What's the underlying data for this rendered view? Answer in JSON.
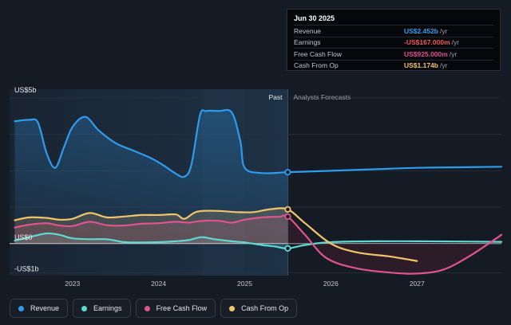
{
  "chart_data": {
    "type": "line",
    "y_axis": {
      "top_label": "US$5b",
      "zero_label": "US$0",
      "bottom_label": "-US$1b",
      "range": [
        -1.1,
        5.3
      ]
    },
    "x_axis": {
      "ticks": [
        "2023",
        "2024",
        "2025",
        "2026",
        "2027"
      ],
      "tick_values": [
        2023,
        2024,
        2025,
        2026,
        2027
      ],
      "range": [
        2022.27,
        2027.98
      ]
    },
    "past_boundary": 2025.5,
    "region_labels": {
      "past": "Past",
      "forecast": "Analysts Forecasts"
    },
    "series": [
      {
        "name": "Revenue",
        "color": "#2f9bec",
        "points": [
          [
            2022.33,
            4.2
          ],
          [
            2022.5,
            4.25
          ],
          [
            2022.6,
            4.15
          ],
          [
            2022.7,
            3.1
          ],
          [
            2022.8,
            2.6
          ],
          [
            2022.9,
            3.3
          ],
          [
            2023.0,
            4.0
          ],
          [
            2023.15,
            4.35
          ],
          [
            2023.3,
            3.9
          ],
          [
            2023.5,
            3.45
          ],
          [
            2023.7,
            3.2
          ],
          [
            2023.9,
            2.95
          ],
          [
            2024.05,
            2.7
          ],
          [
            2024.2,
            2.4
          ],
          [
            2024.3,
            2.3
          ],
          [
            2024.38,
            2.7
          ],
          [
            2024.48,
            4.4
          ],
          [
            2024.55,
            4.55
          ],
          [
            2024.7,
            4.55
          ],
          [
            2024.85,
            4.5
          ],
          [
            2024.95,
            3.5
          ],
          [
            2025.0,
            2.6
          ],
          [
            2025.2,
            2.42
          ],
          [
            2025.5,
            2.45
          ],
          [
            2026.0,
            2.5
          ],
          [
            2026.5,
            2.55
          ],
          [
            2027.0,
            2.6
          ],
          [
            2027.5,
            2.62
          ],
          [
            2027.98,
            2.64
          ]
        ]
      },
      {
        "name": "Earnings",
        "color": "#5fd8d2",
        "points": [
          [
            2022.33,
            0.1
          ],
          [
            2022.5,
            0.22
          ],
          [
            2022.7,
            0.35
          ],
          [
            2022.85,
            0.3
          ],
          [
            2023.0,
            0.18
          ],
          [
            2023.2,
            0.15
          ],
          [
            2023.4,
            0.15
          ],
          [
            2023.6,
            0.05
          ],
          [
            2023.8,
            0.04
          ],
          [
            2024.0,
            0.05
          ],
          [
            2024.2,
            0.08
          ],
          [
            2024.35,
            0.12
          ],
          [
            2024.5,
            0.22
          ],
          [
            2024.65,
            0.15
          ],
          [
            2024.85,
            0.08
          ],
          [
            2025.0,
            0.04
          ],
          [
            2025.2,
            -0.05
          ],
          [
            2025.35,
            -0.1
          ],
          [
            2025.5,
            -0.167
          ],
          [
            2025.7,
            -0.05
          ],
          [
            2026.0,
            0.05
          ],
          [
            2026.5,
            0.08
          ],
          [
            2027.0,
            0.08
          ],
          [
            2027.5,
            0.07
          ],
          [
            2027.98,
            0.06
          ]
        ]
      },
      {
        "name": "Free Cash Flow",
        "color": "#e0538f",
        "points": [
          [
            2022.33,
            0.55
          ],
          [
            2022.5,
            0.65
          ],
          [
            2022.7,
            0.7
          ],
          [
            2022.85,
            0.62
          ],
          [
            2023.0,
            0.6
          ],
          [
            2023.2,
            0.75
          ],
          [
            2023.4,
            0.63
          ],
          [
            2023.6,
            0.62
          ],
          [
            2023.8,
            0.68
          ],
          [
            2024.0,
            0.7
          ],
          [
            2024.2,
            0.75
          ],
          [
            2024.35,
            0.72
          ],
          [
            2024.5,
            0.78
          ],
          [
            2024.7,
            0.78
          ],
          [
            2024.85,
            0.72
          ],
          [
            2025.0,
            0.82
          ],
          [
            2025.2,
            0.9
          ],
          [
            2025.4,
            0.92
          ],
          [
            2025.5,
            0.925
          ],
          [
            2025.7,
            0.3
          ],
          [
            2025.95,
            -0.5
          ],
          [
            2026.3,
            -0.85
          ],
          [
            2026.7,
            -1.0
          ],
          [
            2027.0,
            -1.03
          ],
          [
            2027.3,
            -0.9
          ],
          [
            2027.6,
            -0.45
          ],
          [
            2027.98,
            0.3
          ]
        ]
      },
      {
        "name": "Cash From Op",
        "color": "#f2c46a",
        "points": [
          [
            2022.33,
            0.8
          ],
          [
            2022.5,
            0.9
          ],
          [
            2022.7,
            0.88
          ],
          [
            2022.85,
            0.82
          ],
          [
            2023.0,
            0.85
          ],
          [
            2023.2,
            1.05
          ],
          [
            2023.4,
            0.9
          ],
          [
            2023.6,
            0.93
          ],
          [
            2023.8,
            0.98
          ],
          [
            2024.0,
            0.98
          ],
          [
            2024.2,
            1.0
          ],
          [
            2024.3,
            0.85
          ],
          [
            2024.45,
            1.1
          ],
          [
            2024.7,
            1.12
          ],
          [
            2024.9,
            1.08
          ],
          [
            2025.1,
            1.08
          ],
          [
            2025.3,
            1.18
          ],
          [
            2025.5,
            1.174
          ],
          [
            2025.7,
            0.7
          ],
          [
            2026.0,
            0.0
          ],
          [
            2026.3,
            -0.3
          ],
          [
            2026.7,
            -0.45
          ],
          [
            2027.0,
            -0.6
          ]
        ]
      }
    ],
    "tooltip": {
      "date": "Jun 30 2025",
      "rows": [
        {
          "label": "Revenue",
          "value": "US$2.452b",
          "unit": "/yr",
          "color": "#3c9df0"
        },
        {
          "label": "Earnings",
          "value": "-US$167.000m",
          "unit": "/yr",
          "color": "#ee5a5a"
        },
        {
          "label": "Free Cash Flow",
          "value": "US$925.000m",
          "unit": "/yr",
          "color": "#e0538f"
        },
        {
          "label": "Cash From Op",
          "value": "US$1.174b",
          "unit": "/yr",
          "color": "#f2c46a"
        }
      ]
    },
    "legend": [
      "Revenue",
      "Earnings",
      "Free Cash Flow",
      "Cash From Op"
    ]
  }
}
